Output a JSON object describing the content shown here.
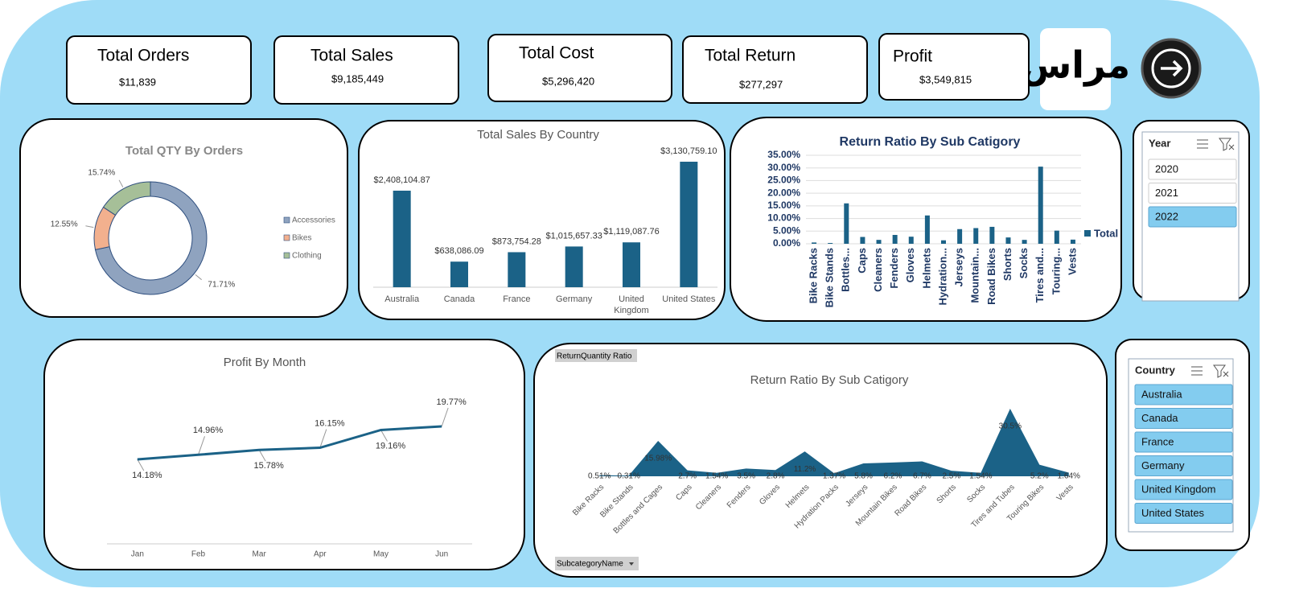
{
  "kpis": [
    {
      "title": "Total Orders",
      "value": "$11,839"
    },
    {
      "title": "Total Sales",
      "value": "$9,185,449"
    },
    {
      "title": "Total Cost",
      "value": "$5,296,420"
    },
    {
      "title": "Total Return",
      "value": "$277,297"
    },
    {
      "title": "Profit",
      "value": "$3,549,815"
    }
  ],
  "logo": "مراس",
  "slicers": [
    {
      "title": "Year",
      "items": [
        "2020",
        "2021",
        "2022"
      ],
      "selected": [
        false,
        false,
        true
      ]
    },
    {
      "title": "Country",
      "items": [
        "Australia",
        "Canada",
        "France",
        "Germany",
        "United Kingdom",
        "United States"
      ],
      "selected": [
        true,
        true,
        true,
        true,
        true,
        true
      ]
    }
  ],
  "chart_data": [
    {
      "type": "donut",
      "title": "Total QTY By Orders",
      "categories": [
        "Accessories",
        "Bikes",
        "Clothing"
      ],
      "values": [
        71.71,
        12.55,
        15.74
      ],
      "value_labels": [
        "71.71%",
        "12.55%",
        "15.74%"
      ],
      "colors": [
        "#8fa3bf",
        "#f2b08e",
        "#a6bf98"
      ],
      "legend": "right"
    },
    {
      "type": "bar",
      "title": "Total Sales By Country",
      "categories": [
        "Australia",
        "Canada",
        "France",
        "Germany",
        "United Kingdom",
        "United States"
      ],
      "values": [
        2408104.87,
        638086.09,
        873754.28,
        1015657.33,
        1119087.76,
        3130759.1
      ],
      "value_labels": [
        "$2,408,104.87",
        "$638,086.09",
        "$873,754.28",
        "$1,015,657.33",
        "$1,119,087.76",
        "$3,130,759.10"
      ],
      "color": "#1b6287"
    },
    {
      "type": "bar",
      "title": "Return Ratio By Sub Catigory",
      "categories": [
        "Bike Racks",
        "Bike Stands",
        "Bottles...",
        "Caps",
        "Cleaners",
        "Fenders",
        "Gloves",
        "Helmets",
        "Hydration...",
        "Jerseys",
        "Mountain...",
        "Road Bikes",
        "Shorts",
        "Socks",
        "Tires and...",
        "Touring...",
        "Vests"
      ],
      "series": [
        {
          "name": "Total",
          "color": "#1b6287",
          "values": [
            0.51,
            0.31,
            15.98,
            2.7,
            1.54,
            3.5,
            2.8,
            11.2,
            1.37,
            5.8,
            6.2,
            6.7,
            2.5,
            1.54,
            30.5,
            5.2,
            1.64
          ]
        }
      ],
      "ylim": [
        0,
        35
      ],
      "yticks": [
        {
          "value": 0,
          "label": "0.00%"
        },
        {
          "value": 5,
          "label": "5.00%"
        },
        {
          "value": 10,
          "label": "10.00%"
        },
        {
          "value": 15,
          "label": "15.00%"
        },
        {
          "value": 20,
          "label": "20.00%"
        },
        {
          "value": 25,
          "label": "25.00%"
        },
        {
          "value": 30,
          "label": "30.00%"
        },
        {
          "value": 35,
          "label": "35.00%"
        }
      ],
      "grid": true,
      "legend": "right"
    },
    {
      "type": "line",
      "title": "Profit By Month",
      "categories": [
        "Jan",
        "Feb",
        "Mar",
        "Apr",
        "May",
        "Jun"
      ],
      "values": [
        14.18,
        14.96,
        15.78,
        16.15,
        19.16,
        19.77
      ],
      "value_labels": [
        "14.18%",
        "14.96%",
        "15.78%",
        "16.15%",
        "19.16%",
        "19.77%"
      ],
      "color": "#1b6287"
    },
    {
      "type": "area",
      "title": "Return Ratio By Sub Catigory",
      "value_field": "ReturnQuantity Ratio",
      "category_field": "SubcategoryName",
      "categories": [
        "Bike Racks",
        "Bike Stands",
        "Bottles and Cages",
        "Caps",
        "Cleaners",
        "Fenders",
        "Gloves",
        "Helmets",
        "Hydration Packs",
        "Jerseys",
        "Mountain Bikes",
        "Road Bikes",
        "Shorts",
        "Socks",
        "Tires and Tubes",
        "Touring Bikes",
        "Vests"
      ],
      "values": [
        0.51,
        0.31,
        15.98,
        2.7,
        1.54,
        3.5,
        2.8,
        11.2,
        1.37,
        5.8,
        6.2,
        6.7,
        2.5,
        1.54,
        30.5,
        5.2,
        1.64
      ],
      "value_labels": [
        "0.51%",
        "0.31%",
        "15.98%",
        "2.7%",
        "1.54%",
        "3.5%",
        "2.8%",
        "11.2%",
        "1.37%",
        "5.8%",
        "6.2%",
        "6.7%",
        "2.5%",
        "1.54%",
        "30.5%",
        "5.2%",
        "1.64%"
      ],
      "color": "#1b6287"
    }
  ]
}
